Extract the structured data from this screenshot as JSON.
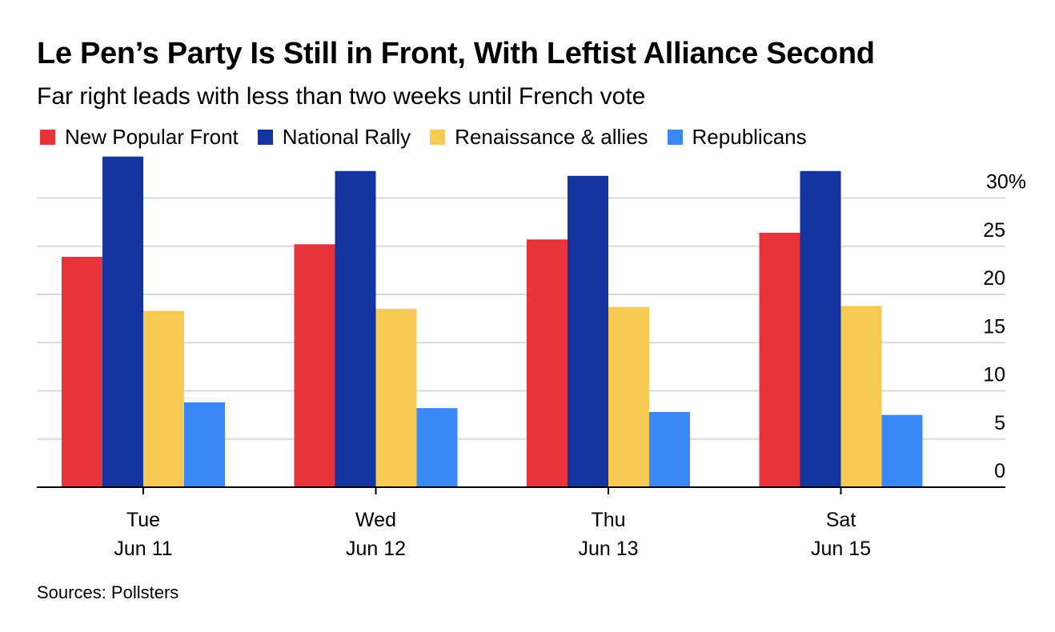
{
  "chart_data": {
    "type": "bar",
    "title": "Le Pen’s Party Is Still in Front, With Leftist Alliance Second",
    "subtitle": "Far right leads with less than two weeks until French vote",
    "source": "Sources: Pollsters",
    "categories": [
      {
        "day": "Tue",
        "date": "Jun 11"
      },
      {
        "day": "Wed",
        "date": "Jun 12"
      },
      {
        "day": "Thu",
        "date": "Jun 13"
      },
      {
        "day": "Sat",
        "date": "Jun 15"
      }
    ],
    "series": [
      {
        "name": "New Popular Front",
        "color": "#e8333b",
        "values": [
          23.9,
          25.2,
          25.7,
          26.4
        ]
      },
      {
        "name": "National Rally",
        "color": "#1434a0",
        "values": [
          34.3,
          32.8,
          32.3,
          32.8
        ]
      },
      {
        "name": "Renaissance & allies",
        "color": "#f7cb52",
        "values": [
          18.3,
          18.5,
          18.7,
          18.8
        ]
      },
      {
        "name": "Republicans",
        "color": "#3a88f5",
        "values": [
          8.8,
          8.2,
          7.8,
          7.5
        ]
      }
    ],
    "y_ticks": [
      "30%",
      "25",
      "20",
      "15",
      "10",
      "5",
      "0"
    ],
    "y_tick_values": [
      30,
      25,
      20,
      15,
      10,
      5,
      0
    ],
    "ylim": [
      0,
      30
    ],
    "y_axis_position": "right",
    "grid": true,
    "legend_position": "top-left"
  }
}
